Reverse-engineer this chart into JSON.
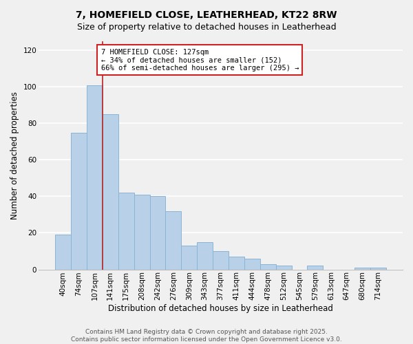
{
  "title_line1": "7, HOMEFIELD CLOSE, LEATHERHEAD, KT22 8RW",
  "title_line2": "Size of property relative to detached houses in Leatherhead",
  "xlabel": "Distribution of detached houses by size in Leatherhead",
  "ylabel": "Number of detached properties",
  "categories": [
    "40sqm",
    "74sqm",
    "107sqm",
    "141sqm",
    "175sqm",
    "208sqm",
    "242sqm",
    "276sqm",
    "309sqm",
    "343sqm",
    "377sqm",
    "411sqm",
    "444sqm",
    "478sqm",
    "512sqm",
    "545sqm",
    "579sqm",
    "613sqm",
    "647sqm",
    "680sqm",
    "714sqm"
  ],
  "values": [
    19,
    75,
    101,
    85,
    42,
    41,
    40,
    32,
    13,
    15,
    10,
    7,
    6,
    3,
    2,
    0,
    2,
    0,
    0,
    1,
    1
  ],
  "bar_color": "#b8d0e8",
  "bar_edge_color": "#8ab4d4",
  "vline_color": "#bb2222",
  "vline_x": 2.5,
  "annotation_text": "7 HOMEFIELD CLOSE: 127sqm\n← 34% of detached houses are smaller (152)\n66% of semi-detached houses are larger (295) →",
  "annotation_box_facecolor": "#ffffff",
  "annotation_border_color": "#cc2222",
  "ylim": [
    0,
    125
  ],
  "yticks": [
    0,
    20,
    40,
    60,
    80,
    100,
    120
  ],
  "footer_line1": "Contains HM Land Registry data © Crown copyright and database right 2025.",
  "footer_line2": "Contains public sector information licensed under the Open Government Licence v3.0.",
  "bg_color": "#f0f0f0",
  "grid_color": "#ffffff",
  "title_fontsize": 10,
  "subtitle_fontsize": 9,
  "axis_label_fontsize": 8.5,
  "tick_fontsize": 7.5,
  "annotation_fontsize": 7.5,
  "footer_fontsize": 6.5
}
